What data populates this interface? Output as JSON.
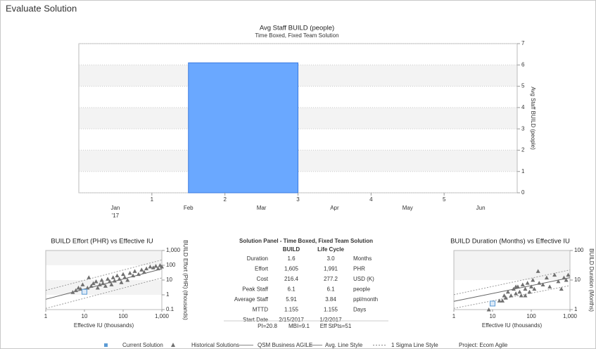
{
  "header": {
    "title": "Evaluate Solution"
  },
  "chart_data": [
    {
      "type": "bar",
      "title": "Avg Staff BUILD (people)",
      "subtitle": "Time Boxed, Fixed Team Solution",
      "ylabel": "Avg Staff BUILD (people)",
      "color": "#6aa8ff",
      "x_range": [
        1.5,
        3.0
      ],
      "values": [
        6.1
      ],
      "xlim": [
        0,
        6
      ],
      "xticks": [
        1,
        2,
        3,
        4,
        5
      ],
      "months": [
        "Jan",
        "Feb",
        "Mar",
        "Apr",
        "May",
        "Jun"
      ],
      "year_label": "'17",
      "ylim": [
        0,
        7
      ],
      "yticks": [
        0,
        1,
        2,
        3,
        4,
        5,
        6,
        7
      ],
      "grid": true
    },
    {
      "type": "scatter",
      "title": "BUILD Effort (PHR) vs Effective IU",
      "xlabel": "Effective IU (thousands)",
      "ylabel": "BUILD Effort (PHR) (thousands)",
      "xlog": true,
      "ylog": true,
      "xlim": [
        1,
        1000
      ],
      "xticks": [
        1,
        10,
        100,
        {
          "value": 1000,
          "label": "1,000"
        }
      ],
      "ylim": [
        0.1,
        1000
      ],
      "yticks": [
        0.1,
        1,
        10,
        100,
        {
          "value": 1000,
          "label": "1,000"
        }
      ],
      "series": [
        {
          "color": "#707070",
          "marker": "triangle",
          "x": [
            5,
            6,
            7,
            8,
            9,
            10,
            12,
            13,
            15,
            17,
            20,
            22,
            25,
            28,
            30,
            35,
            40,
            45,
            50,
            55,
            60,
            70,
            80,
            90,
            100,
            110,
            130,
            150,
            180,
            200,
            250,
            300,
            350,
            400,
            500,
            600,
            700,
            800,
            900,
            1000
          ],
          "values": [
            1.5,
            2,
            3,
            2.5,
            5,
            2,
            3,
            15,
            4,
            6,
            8,
            3,
            5,
            10,
            6,
            4,
            12,
            8,
            5,
            15,
            9,
            20,
            12,
            7,
            25,
            15,
            10,
            30,
            20,
            40,
            25,
            50,
            35,
            60,
            80,
            70,
            90,
            60,
            100,
            80
          ]
        },
        {
          "color": "#5b9bd5",
          "marker": "square",
          "x": [
            10
          ],
          "values": [
            1.605
          ]
        }
      ],
      "trend": {
        "x": [
          1,
          1000
        ],
        "values": [
          0.5,
          57
        ]
      },
      "sigma_upper": {
        "x": [
          1,
          1000
        ],
        "values": [
          2,
          230
        ]
      },
      "sigma_lower": {
        "x": [
          1,
          1000
        ],
        "values": [
          0.12,
          14
        ]
      }
    },
    {
      "type": "scatter",
      "title": "BUILD Duration (Months) vs Effective IU",
      "xlabel": "Effective IU (thousands)",
      "ylabel": "BUILD Duration (Months)",
      "xlog": true,
      "ylog": true,
      "xlim": [
        1,
        1000
      ],
      "xticks": [
        1,
        10,
        100,
        {
          "value": 1000,
          "label": "1,000"
        }
      ],
      "ylim": [
        1,
        100
      ],
      "yticks": [
        1,
        10,
        100
      ],
      "series": [
        {
          "color": "#707070",
          "marker": "triangle",
          "x": [
            8,
            15,
            18,
            20,
            22,
            25,
            30,
            35,
            40,
            40,
            45,
            50,
            55,
            60,
            70,
            70,
            80,
            90,
            100,
            110,
            120,
            150,
            160,
            200,
            250,
            300,
            400,
            500,
            600,
            700,
            800,
            900
          ],
          "values": [
            1,
            2,
            2,
            3,
            2.5,
            4,
            3,
            5,
            3.5,
            6,
            6,
            4,
            3,
            7,
            5,
            3,
            8,
            4,
            6,
            10,
            5,
            20,
            8,
            7,
            12,
            6,
            15,
            9,
            5,
            12,
            10,
            15
          ]
        },
        {
          "color": "#5b9bd5",
          "marker": "square",
          "x": [
            10
          ],
          "values": [
            1.6
          ]
        }
      ],
      "trend": {
        "x": [
          1,
          1000
        ],
        "values": [
          1.9,
          12
        ]
      },
      "sigma_upper": {
        "x": [
          1,
          1000
        ],
        "values": [
          3.2,
          22
        ]
      },
      "sigma_lower": {
        "x": [
          1,
          1000
        ],
        "values": [
          1.1,
          6.5
        ]
      }
    }
  ],
  "solution_panel": {
    "title": "Solution Panel - Time Boxed, Fixed Team Solution",
    "columns": [
      "BUILD",
      "Life Cycle"
    ],
    "rows": [
      [
        "Duration",
        "1.6",
        "3.0",
        "Months"
      ],
      [
        "Effort",
        "1,605",
        "1,991",
        "PHR"
      ],
      [
        "Cost",
        "216.4",
        "277.2",
        "USD (K)"
      ],
      [
        "Peak Staff",
        "6.1",
        "6.1",
        "people"
      ],
      [
        "Average Staff",
        "5.91",
        "3.84",
        "ppl/month"
      ],
      [
        "MTTD",
        "1.155",
        "1.155",
        "Days"
      ],
      [
        "Start Date",
        "2/15/2017",
        "1/2/2017",
        ""
      ]
    ],
    "footer": [
      "PI=20.8",
      "MBI=9.1",
      "Eff StPts=51"
    ]
  },
  "legend": {
    "items": [
      "Current Solution",
      "Historical Solutions",
      "QSM Business AGILE",
      "Avg. Line Style",
      "1 Sigma Line Style"
    ],
    "project": "Project: Ecom Agile"
  }
}
